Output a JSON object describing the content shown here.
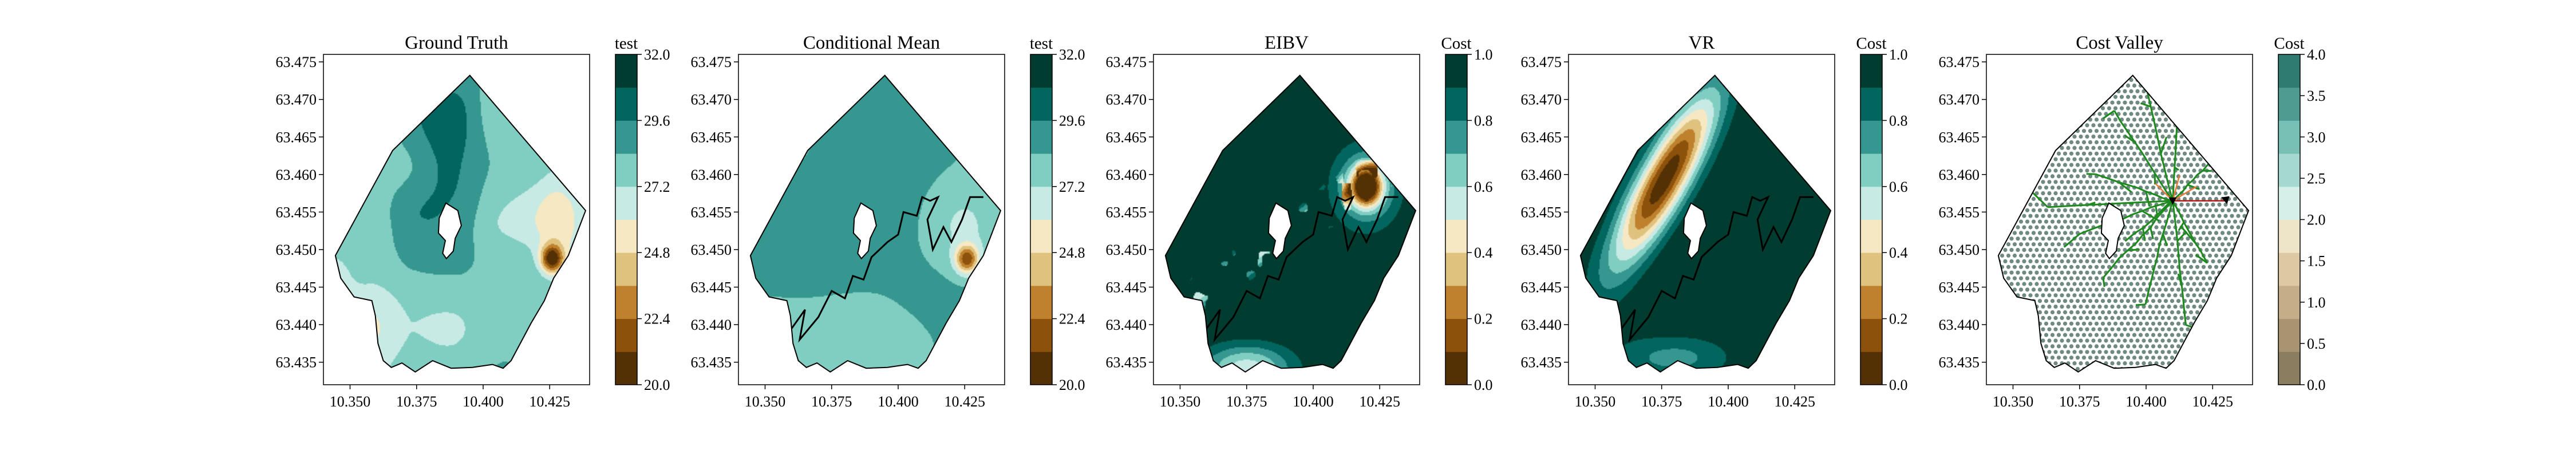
{
  "chart_data": [
    {
      "type": "contour",
      "title": "Ground Truth",
      "colorbar": {
        "label": "test",
        "ticks": [
          "20.0",
          "22.4",
          "24.8",
          "27.2",
          "29.6",
          "32.0"
        ],
        "range": [
          20.0,
          32.0
        ],
        "colors": [
          "#543005",
          "#8c510a",
          "#bf812d",
          "#dfc27d",
          "#f6e8c3",
          "#c7eae5",
          "#80cdc1",
          "#35978f",
          "#01665e",
          "#003c30"
        ]
      },
      "x_ticks": [
        "10.350",
        "10.375",
        "10.400",
        "10.425"
      ],
      "y_ticks": [
        "63.435",
        "63.440",
        "63.445",
        "63.450",
        "63.455",
        "63.460",
        "63.465",
        "63.470",
        "63.475"
      ],
      "xlim": [
        10.34,
        10.44
      ],
      "ylim": [
        63.432,
        63.476
      ]
    },
    {
      "type": "contour",
      "title": "Conditional Mean",
      "colorbar": {
        "label": "test",
        "ticks": [
          "20.0",
          "22.4",
          "24.8",
          "27.2",
          "29.6",
          "32.0"
        ],
        "range": [
          20.0,
          32.0
        ],
        "colors": [
          "#543005",
          "#8c510a",
          "#bf812d",
          "#dfc27d",
          "#f6e8c3",
          "#c7eae5",
          "#80cdc1",
          "#35978f",
          "#01665e",
          "#003c30"
        ]
      },
      "x_ticks": [
        "10.350",
        "10.375",
        "10.400",
        "10.425"
      ],
      "y_ticks": [
        "63.435",
        "63.440",
        "63.445",
        "63.450",
        "63.455",
        "63.460",
        "63.465",
        "63.470",
        "63.475"
      ],
      "xlim": [
        10.34,
        10.44
      ],
      "ylim": [
        63.432,
        63.476
      ],
      "path_lon_lat": [
        [
          10.36,
          63.4395
        ],
        [
          10.365,
          63.442
        ],
        [
          10.363,
          63.438
        ],
        [
          10.37,
          63.441
        ],
        [
          10.375,
          63.4445
        ],
        [
          10.38,
          63.4435
        ],
        [
          10.383,
          63.4465
        ],
        [
          10.387,
          63.446
        ],
        [
          10.39,
          63.449
        ],
        [
          10.396,
          63.451
        ],
        [
          10.4,
          63.452
        ],
        [
          10.402,
          63.455
        ],
        [
          10.407,
          63.4545
        ],
        [
          10.409,
          63.457
        ],
        [
          10.412,
          63.4565
        ],
        [
          10.415,
          63.457
        ],
        [
          10.411,
          63.454
        ],
        [
          10.413,
          63.45
        ],
        [
          10.417,
          63.453
        ],
        [
          10.42,
          63.451
        ],
        [
          10.424,
          63.454
        ],
        [
          10.427,
          63.457
        ],
        [
          10.432,
          63.457
        ]
      ]
    },
    {
      "type": "contour",
      "title": "EIBV",
      "colorbar": {
        "label": "Cost",
        "ticks": [
          "0.0",
          "0.2",
          "0.4",
          "0.6",
          "0.8",
          "1.0"
        ],
        "range": [
          0.0,
          1.0
        ],
        "colors": [
          "#543005",
          "#8c510a",
          "#bf812d",
          "#dfc27d",
          "#f6e8c3",
          "#c7eae5",
          "#80cdc1",
          "#35978f",
          "#01665e",
          "#003c30"
        ]
      },
      "x_ticks": [
        "10.350",
        "10.375",
        "10.400",
        "10.425"
      ],
      "y_ticks": [
        "63.435",
        "63.440",
        "63.445",
        "63.450",
        "63.455",
        "63.460",
        "63.465",
        "63.470",
        "63.475"
      ],
      "xlim": [
        10.34,
        10.44
      ],
      "ylim": [
        63.432,
        63.476
      ],
      "path_lon_lat": [
        [
          10.36,
          63.4395
        ],
        [
          10.365,
          63.442
        ],
        [
          10.363,
          63.438
        ],
        [
          10.37,
          63.441
        ],
        [
          10.375,
          63.4445
        ],
        [
          10.38,
          63.4435
        ],
        [
          10.383,
          63.4465
        ],
        [
          10.387,
          63.446
        ],
        [
          10.39,
          63.449
        ],
        [
          10.396,
          63.451
        ],
        [
          10.4,
          63.452
        ],
        [
          10.402,
          63.455
        ],
        [
          10.407,
          63.4545
        ],
        [
          10.409,
          63.457
        ],
        [
          10.412,
          63.4565
        ],
        [
          10.415,
          63.457
        ],
        [
          10.411,
          63.454
        ],
        [
          10.413,
          63.45
        ],
        [
          10.417,
          63.453
        ],
        [
          10.42,
          63.451
        ],
        [
          10.424,
          63.454
        ],
        [
          10.427,
          63.457
        ],
        [
          10.432,
          63.457
        ]
      ]
    },
    {
      "type": "contour",
      "title": "VR",
      "colorbar": {
        "label": "Cost",
        "ticks": [
          "0.0",
          "0.2",
          "0.4",
          "0.6",
          "0.8",
          "1.0"
        ],
        "range": [
          0.0,
          1.0
        ],
        "colors": [
          "#543005",
          "#8c510a",
          "#bf812d",
          "#dfc27d",
          "#f6e8c3",
          "#c7eae5",
          "#80cdc1",
          "#35978f",
          "#01665e",
          "#003c30"
        ]
      },
      "x_ticks": [
        "10.350",
        "10.375",
        "10.400",
        "10.425"
      ],
      "y_ticks": [
        "63.435",
        "63.440",
        "63.445",
        "63.450",
        "63.455",
        "63.460",
        "63.465",
        "63.470",
        "63.475"
      ],
      "xlim": [
        10.34,
        10.44
      ],
      "ylim": [
        63.432,
        63.476
      ],
      "path_lon_lat": [
        [
          10.36,
          63.4395
        ],
        [
          10.365,
          63.442
        ],
        [
          10.363,
          63.438
        ],
        [
          10.37,
          63.441
        ],
        [
          10.375,
          63.4445
        ],
        [
          10.38,
          63.4435
        ],
        [
          10.383,
          63.4465
        ],
        [
          10.387,
          63.446
        ],
        [
          10.39,
          63.449
        ],
        [
          10.396,
          63.451
        ],
        [
          10.4,
          63.452
        ],
        [
          10.402,
          63.455
        ],
        [
          10.407,
          63.4545
        ],
        [
          10.409,
          63.457
        ],
        [
          10.412,
          63.4565
        ],
        [
          10.415,
          63.457
        ],
        [
          10.411,
          63.454
        ],
        [
          10.413,
          63.45
        ],
        [
          10.417,
          63.453
        ],
        [
          10.42,
          63.451
        ],
        [
          10.424,
          63.454
        ],
        [
          10.427,
          63.457
        ],
        [
          10.432,
          63.457
        ]
      ]
    },
    {
      "type": "scatter",
      "title": "Cost Valley",
      "colorbar": {
        "label": "Cost",
        "ticks": [
          "0.0",
          "0.5",
          "1.0",
          "1.5",
          "2.0",
          "2.5",
          "3.0",
          "3.5",
          "4.0"
        ],
        "range": [
          0.0,
          4.0
        ],
        "colors": [
          "#8a7d60",
          "#a89470",
          "#c4ad88",
          "#dcc9a4",
          "#eee4c8",
          "#d7efe9",
          "#a5d9d0",
          "#78bfb5",
          "#4f9a91",
          "#2f7a71"
        ]
      },
      "x_ticks": [
        "10.350",
        "10.375",
        "10.400",
        "10.425"
      ],
      "y_ticks": [
        "63.435",
        "63.440",
        "63.445",
        "63.450",
        "63.455",
        "63.460",
        "63.465",
        "63.470",
        "63.475"
      ],
      "xlim": [
        10.34,
        10.44
      ],
      "ylim": [
        63.432,
        63.476
      ],
      "current_location_lon_lat": [
        10.41,
        63.4565
      ],
      "target_location_lon_lat": [
        10.43,
        63.4565
      ]
    }
  ]
}
